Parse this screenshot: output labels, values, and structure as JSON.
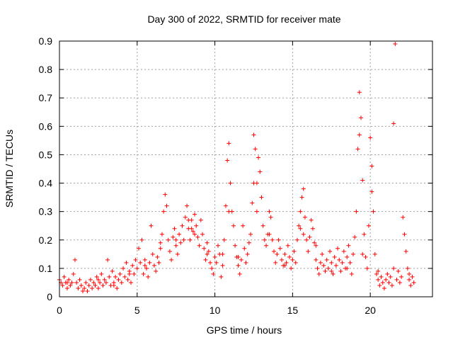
{
  "colors": {
    "series": "#ff0000",
    "grid": "#a0a0a0",
    "axis": "#000000"
  },
  "chart_data": {
    "type": "scatter",
    "title": "Day 300 of 2022, SRMTID for receiver mate",
    "xlabel": "GPS time / hours",
    "ylabel": "SRMTID / TECUs",
    "xlim": [
      0,
      24
    ],
    "ylim": [
      0,
      0.9
    ],
    "xticks": [
      0,
      5,
      10,
      15,
      20
    ],
    "yticks": [
      0,
      0.1,
      0.2,
      0.3,
      0.4,
      0.5,
      0.6,
      0.7,
      0.8,
      0.9
    ],
    "xtick_labels": [
      "0",
      "5",
      "10",
      "15",
      "20"
    ],
    "ytick_labels": [
      "0",
      "0.1",
      "0.2",
      "0.3",
      "0.4",
      "0.5",
      "0.6",
      "0.7",
      "0.8",
      "0.9"
    ],
    "grid": true,
    "marker": "+",
    "series": [
      {
        "name": "SRMTID",
        "points": [
          [
            0.0,
            0.06
          ],
          [
            0.1,
            0.05
          ],
          [
            0.2,
            0.04
          ],
          [
            0.3,
            0.07
          ],
          [
            0.4,
            0.05
          ],
          [
            0.5,
            0.03
          ],
          [
            0.6,
            0.06
          ],
          [
            0.7,
            0.04
          ],
          [
            0.8,
            0.05
          ],
          [
            0.9,
            0.08
          ],
          [
            1.0,
            0.13
          ],
          [
            1.1,
            0.05
          ],
          [
            1.2,
            0.03
          ],
          [
            1.4,
            0.04
          ],
          [
            1.5,
            0.02
          ],
          [
            1.6,
            0.03
          ],
          [
            1.7,
            0.05
          ],
          [
            1.8,
            0.02
          ],
          [
            1.9,
            0.04
          ],
          [
            2.0,
            0.06
          ],
          [
            2.1,
            0.03
          ],
          [
            2.2,
            0.05
          ],
          [
            2.3,
            0.04
          ],
          [
            2.4,
            0.07
          ],
          [
            2.5,
            0.03
          ],
          [
            2.6,
            0.05
          ],
          [
            2.7,
            0.08
          ],
          [
            2.8,
            0.04
          ],
          [
            2.9,
            0.06
          ],
          [
            3.0,
            0.05
          ],
          [
            3.1,
            0.13
          ],
          [
            3.2,
            0.07
          ],
          [
            3.3,
            0.04
          ],
          [
            3.4,
            0.09
          ],
          [
            3.5,
            0.05
          ],
          [
            3.6,
            0.07
          ],
          [
            3.7,
            0.03
          ],
          [
            3.8,
            0.06
          ],
          [
            3.9,
            0.08
          ],
          [
            4.0,
            0.05
          ],
          [
            4.1,
            0.1
          ],
          [
            4.2,
            0.07
          ],
          [
            4.3,
            0.12
          ],
          [
            4.4,
            0.06
          ],
          [
            4.5,
            0.09
          ],
          [
            4.6,
            0.05
          ],
          [
            4.7,
            0.11
          ],
          [
            4.8,
            0.08
          ],
          [
            4.9,
            0.13
          ],
          [
            5.0,
            0.1
          ],
          [
            5.1,
            0.17
          ],
          [
            5.2,
            0.12
          ],
          [
            5.3,
            0.2
          ],
          [
            5.4,
            0.08
          ],
          [
            5.5,
            0.13
          ],
          [
            5.6,
            0.1
          ],
          [
            5.7,
            0.07
          ],
          [
            5.8,
            0.12
          ],
          [
            5.9,
            0.25
          ],
          [
            6.0,
            0.15
          ],
          [
            6.1,
            0.11
          ],
          [
            6.2,
            0.09
          ],
          [
            6.3,
            0.14
          ],
          [
            6.4,
            0.12
          ],
          [
            6.5,
            0.19
          ],
          [
            6.6,
            0.22
          ],
          [
            6.7,
            0.3
          ],
          [
            6.8,
            0.36
          ],
          [
            6.9,
            0.32
          ],
          [
            7.0,
            0.2
          ],
          [
            7.1,
            0.16
          ],
          [
            7.2,
            0.13
          ],
          [
            7.3,
            0.21
          ],
          [
            7.4,
            0.24
          ],
          [
            7.5,
            0.18
          ],
          [
            7.6,
            0.15
          ],
          [
            7.7,
            0.22
          ],
          [
            7.8,
            0.19
          ],
          [
            7.9,
            0.25
          ],
          [
            8.0,
            0.2
          ],
          [
            8.1,
            0.28
          ],
          [
            8.2,
            0.32
          ],
          [
            8.3,
            0.24
          ],
          [
            8.4,
            0.2
          ],
          [
            8.5,
            0.27
          ],
          [
            8.6,
            0.23
          ],
          [
            8.7,
            0.29
          ],
          [
            8.8,
            0.25
          ],
          [
            8.9,
            0.21
          ],
          [
            9.0,
            0.18
          ],
          [
            9.1,
            0.27
          ],
          [
            9.2,
            0.22
          ],
          [
            9.3,
            0.17
          ],
          [
            9.4,
            0.13
          ],
          [
            9.5,
            0.19
          ],
          [
            9.6,
            0.16
          ],
          [
            9.7,
            0.12
          ],
          [
            9.8,
            0.1
          ],
          [
            9.9,
            0.08
          ],
          [
            10.0,
            0.14
          ],
          [
            10.1,
            0.12
          ],
          [
            10.2,
            0.18
          ],
          [
            10.3,
            0.15
          ],
          [
            10.4,
            0.07
          ],
          [
            10.5,
            0.11
          ],
          [
            10.6,
            0.2
          ],
          [
            10.7,
            0.32
          ],
          [
            10.8,
            0.48
          ],
          [
            10.9,
            0.54
          ],
          [
            11.0,
            0.4
          ],
          [
            11.1,
            0.3
          ],
          [
            11.2,
            0.25
          ],
          [
            11.3,
            0.18
          ],
          [
            11.4,
            0.14
          ],
          [
            11.5,
            0.11
          ],
          [
            11.6,
            0.08
          ],
          [
            11.7,
            0.13
          ],
          [
            11.8,
            0.25
          ],
          [
            11.9,
            0.17
          ],
          [
            12.0,
            0.12
          ],
          [
            12.1,
            0.15
          ],
          [
            12.2,
            0.19
          ],
          [
            12.3,
            0.22
          ],
          [
            12.4,
            0.33
          ],
          [
            12.5,
            0.57
          ],
          [
            12.6,
            0.52
          ],
          [
            12.7,
            0.4
          ],
          [
            12.8,
            0.49
          ],
          [
            12.9,
            0.44
          ],
          [
            13.0,
            0.35
          ],
          [
            13.1,
            0.25
          ],
          [
            13.2,
            0.2
          ],
          [
            13.3,
            0.18
          ],
          [
            13.4,
            0.22
          ],
          [
            13.5,
            0.3
          ],
          [
            13.6,
            0.28
          ],
          [
            13.7,
            0.2
          ],
          [
            13.8,
            0.16
          ],
          [
            13.9,
            0.12
          ],
          [
            14.0,
            0.15
          ],
          [
            14.1,
            0.2
          ],
          [
            14.2,
            0.17
          ],
          [
            14.3,
            0.13
          ],
          [
            14.4,
            0.11
          ],
          [
            14.5,
            0.15
          ],
          [
            14.6,
            0.12
          ],
          [
            14.7,
            0.18
          ],
          [
            14.8,
            0.14
          ],
          [
            14.9,
            0.1
          ],
          [
            15.0,
            0.13
          ],
          [
            15.1,
            0.16
          ],
          [
            15.2,
            0.12
          ],
          [
            15.3,
            0.2
          ],
          [
            15.4,
            0.25
          ],
          [
            15.5,
            0.3
          ],
          [
            15.6,
            0.35
          ],
          [
            15.7,
            0.38
          ],
          [
            15.8,
            0.28
          ],
          [
            15.9,
            0.2
          ],
          [
            16.0,
            0.16
          ],
          [
            16.1,
            0.21
          ],
          [
            16.2,
            0.27
          ],
          [
            16.3,
            0.24
          ],
          [
            16.4,
            0.19
          ],
          [
            16.5,
            0.13
          ],
          [
            16.6,
            0.1
          ],
          [
            16.7,
            0.08
          ],
          [
            16.8,
            0.12
          ],
          [
            16.9,
            0.15
          ],
          [
            17.0,
            0.11
          ],
          [
            17.1,
            0.09
          ],
          [
            17.2,
            0.13
          ],
          [
            17.3,
            0.1
          ],
          [
            17.4,
            0.16
          ],
          [
            17.5,
            0.12
          ],
          [
            17.6,
            0.08
          ],
          [
            17.7,
            0.14
          ],
          [
            17.8,
            0.11
          ],
          [
            17.9,
            0.17
          ],
          [
            18.0,
            0.13
          ],
          [
            18.1,
            0.09
          ],
          [
            18.2,
            0.12
          ],
          [
            18.3,
            0.16
          ],
          [
            18.4,
            0.1
          ],
          [
            18.5,
            0.14
          ],
          [
            18.6,
            0.18
          ],
          [
            18.7,
            0.12
          ],
          [
            18.8,
            0.08
          ],
          [
            18.9,
            0.15
          ],
          [
            19.0,
            0.21
          ],
          [
            19.1,
            0.3
          ],
          [
            19.2,
            0.52
          ],
          [
            19.3,
            0.72
          ],
          [
            19.4,
            0.63
          ],
          [
            19.5,
            0.41
          ],
          [
            19.6,
            0.22
          ],
          [
            19.7,
            0.14
          ],
          [
            19.8,
            0.1
          ],
          [
            19.9,
            0.25
          ],
          [
            20.0,
            0.56
          ],
          [
            20.1,
            0.46
          ],
          [
            20.2,
            0.3
          ],
          [
            20.3,
            0.15
          ],
          [
            20.4,
            0.08
          ],
          [
            20.5,
            0.06
          ],
          [
            20.6,
            0.04
          ],
          [
            20.7,
            0.07
          ],
          [
            20.8,
            0.05
          ],
          [
            20.9,
            0.03
          ],
          [
            21.0,
            0.06
          ],
          [
            21.1,
            0.08
          ],
          [
            21.2,
            0.05
          ],
          [
            21.3,
            0.07
          ],
          [
            21.4,
            0.04
          ],
          [
            21.5,
            0.61
          ],
          [
            21.6,
            0.89
          ],
          [
            21.7,
            0.06
          ],
          [
            21.8,
            0.09
          ],
          [
            21.9,
            0.05
          ],
          [
            22.0,
            0.07
          ],
          [
            22.1,
            0.28
          ],
          [
            22.2,
            0.22
          ],
          [
            22.3,
            0.16
          ],
          [
            22.4,
            0.1
          ],
          [
            22.5,
            0.06
          ],
          [
            22.6,
            0.04
          ],
          [
            22.7,
            0.07
          ],
          [
            22.8,
            0.05
          ],
          [
            0.5,
            0.05
          ],
          [
            1.3,
            0.06
          ],
          [
            2.5,
            0.06
          ],
          [
            3.5,
            0.04
          ],
          [
            4.5,
            0.08
          ],
          [
            5.5,
            0.11
          ],
          [
            6.5,
            0.17
          ],
          [
            7.5,
            0.2
          ],
          [
            8.5,
            0.24
          ],
          [
            9.5,
            0.15
          ],
          [
            10.5,
            0.15
          ],
          [
            11.5,
            0.14
          ],
          [
            12.5,
            0.4
          ],
          [
            13.5,
            0.22
          ],
          [
            14.5,
            0.11
          ],
          [
            15.5,
            0.24
          ],
          [
            16.5,
            0.18
          ],
          [
            17.5,
            0.09
          ],
          [
            18.5,
            0.1
          ],
          [
            19.5,
            0.15
          ],
          [
            20.5,
            0.09
          ],
          [
            21.5,
            0.1
          ],
          [
            22.5,
            0.08
          ],
          [
            8.3,
            0.27
          ],
          [
            8.7,
            0.22
          ],
          [
            10.9,
            0.3
          ],
          [
            12.7,
            0.3
          ],
          [
            15.7,
            0.22
          ],
          [
            19.3,
            0.57
          ],
          [
            20.1,
            0.37
          ]
        ]
      }
    ]
  }
}
